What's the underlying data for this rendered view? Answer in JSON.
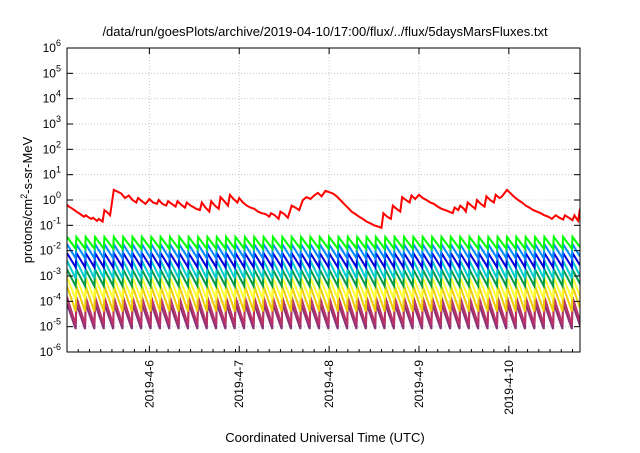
{
  "chart_data": {
    "type": "line",
    "title": "/data/run/goesPlots/archive/2019-04-10/17:00/flux/../flux/5daysMarsFluxes.txt",
    "xlabel": "Coordinated Universal Time (UTC)",
    "ylabel": "protons/cm²-s-sr-MeV",
    "y_scale": "log",
    "ylim": [
      1e-06,
      1000000.0
    ],
    "xlim": [
      "2019-04-05T02:00",
      "2019-04-10T19:00"
    ],
    "grid": true,
    "y_ticks": [
      {
        "value": 1e-06,
        "base": "10",
        "exp": "-6"
      },
      {
        "value": 1e-05,
        "base": "10",
        "exp": "-5"
      },
      {
        "value": 0.0001,
        "base": "10",
        "exp": "-4"
      },
      {
        "value": 0.001,
        "base": "10",
        "exp": "-3"
      },
      {
        "value": 0.01,
        "base": "10",
        "exp": "-2"
      },
      {
        "value": 0.1,
        "base": "10",
        "exp": "-1"
      },
      {
        "value": 1.0,
        "base": "10",
        "exp": "0"
      },
      {
        "value": 10.0,
        "base": "10",
        "exp": "1"
      },
      {
        "value": 100.0,
        "base": "10",
        "exp": "2"
      },
      {
        "value": 1000.0,
        "base": "10",
        "exp": "3"
      },
      {
        "value": 10000.0,
        "base": "10",
        "exp": "4"
      },
      {
        "value": 100000.0,
        "base": "10",
        "exp": "5"
      },
      {
        "value": 1000000.0,
        "base": "10",
        "exp": "6"
      }
    ],
    "x_ticks": [
      {
        "value": "2019-04-06T00:00",
        "label": "2019-4-6"
      },
      {
        "value": "2019-04-07T00:00",
        "label": "2019-4-7"
      },
      {
        "value": "2019-04-08T00:00",
        "label": "2019-4-8"
      },
      {
        "value": "2019-04-09T00:00",
        "label": "2019-4-9"
      },
      {
        "value": "2019-04-10T00:00",
        "label": "2019-4-10"
      }
    ],
    "series": [
      {
        "color": "#ff0000",
        "points": [
          [
            "2019-04-05T02:00",
            0.65
          ],
          [
            "2019-04-05T02:30",
            0.55
          ],
          [
            "2019-04-05T03:30",
            0.45
          ],
          [
            "2019-04-05T04:30",
            0.35
          ],
          [
            "2019-04-05T05:30",
            0.28
          ],
          [
            "2019-04-05T06:30",
            0.22
          ],
          [
            "2019-04-05T07:00",
            0.25
          ],
          [
            "2019-04-05T07:30",
            0.22
          ],
          [
            "2019-04-05T08:30",
            0.18
          ],
          [
            "2019-04-05T09:00",
            0.2
          ],
          [
            "2019-04-05T09:30",
            0.17
          ],
          [
            "2019-04-05T10:00",
            0.15
          ],
          [
            "2019-04-05T10:30",
            0.18
          ],
          [
            "2019-04-05T11:30",
            0.14
          ],
          [
            "2019-04-05T12:00",
            0.4
          ],
          [
            "2019-04-05T13:00",
            0.3
          ],
          [
            "2019-04-05T13:30",
            0.25
          ],
          [
            "2019-04-05T14:30",
            2.5
          ],
          [
            "2019-04-05T16:30",
            1.8
          ],
          [
            "2019-04-05T17:30",
            1.2
          ],
          [
            "2019-04-05T18:30",
            1.5
          ],
          [
            "2019-04-05T19:30",
            1.0
          ],
          [
            "2019-04-05T20:30",
            0.8
          ],
          [
            "2019-04-05T21:00",
            1.2
          ],
          [
            "2019-04-05T22:00",
            0.9
          ],
          [
            "2019-04-05T23:00",
            0.7
          ],
          [
            "2019-04-06T00:00",
            1.1
          ],
          [
            "2019-04-06T01:00",
            0.8
          ],
          [
            "2019-04-06T02:00",
            0.7
          ],
          [
            "2019-04-06T02:30",
            1.0
          ],
          [
            "2019-04-06T03:30",
            0.7
          ],
          [
            "2019-04-06T04:30",
            0.6
          ],
          [
            "2019-04-06T05:00",
            0.9
          ],
          [
            "2019-04-06T06:00",
            0.7
          ],
          [
            "2019-04-06T07:00",
            0.55
          ],
          [
            "2019-04-06T07:30",
            0.9
          ],
          [
            "2019-04-06T08:30",
            0.65
          ],
          [
            "2019-04-06T09:30",
            0.5
          ],
          [
            "2019-04-06T10:00",
            0.8
          ],
          [
            "2019-04-06T11:00",
            0.6
          ],
          [
            "2019-04-06T12:00",
            0.5
          ],
          [
            "2019-04-06T12:30",
            0.45
          ],
          [
            "2019-04-06T13:30",
            0.4
          ],
          [
            "2019-04-06T14:00",
            0.8
          ],
          [
            "2019-04-06T15:00",
            0.5
          ],
          [
            "2019-04-06T16:00",
            0.35
          ],
          [
            "2019-04-06T16:30",
            0.9
          ],
          [
            "2019-04-06T17:30",
            0.6
          ],
          [
            "2019-04-06T18:30",
            0.45
          ],
          [
            "2019-04-06T19:00",
            1.3
          ],
          [
            "2019-04-06T20:00",
            0.9
          ],
          [
            "2019-04-06T21:00",
            0.6
          ],
          [
            "2019-04-06T21:30",
            1.6
          ],
          [
            "2019-04-06T22:30",
            1.1
          ],
          [
            "2019-04-06T23:30",
            0.8
          ],
          [
            "2019-04-07T00:00",
            1.2
          ],
          [
            "2019-04-07T01:00",
            0.8
          ],
          [
            "2019-04-07T02:00",
            0.6
          ],
          [
            "2019-04-07T03:00",
            0.5
          ],
          [
            "2019-04-07T04:00",
            0.45
          ],
          [
            "2019-04-07T05:00",
            0.35
          ],
          [
            "2019-04-07T06:00",
            0.3
          ],
          [
            "2019-04-07T07:00",
            0.28
          ],
          [
            "2019-04-07T08:00",
            0.22
          ],
          [
            "2019-04-07T08:30",
            0.3
          ],
          [
            "2019-04-07T09:30",
            0.25
          ],
          [
            "2019-04-07T10:30",
            0.18
          ],
          [
            "2019-04-07T11:00",
            0.35
          ],
          [
            "2019-04-07T12:00",
            0.28
          ],
          [
            "2019-04-07T13:00",
            0.2
          ],
          [
            "2019-04-07T14:00",
            0.6
          ],
          [
            "2019-04-07T15:00",
            0.5
          ],
          [
            "2019-04-07T16:00",
            0.4
          ],
          [
            "2019-04-07T17:00",
            1.0
          ],
          [
            "2019-04-07T18:00",
            1.3
          ],
          [
            "2019-04-07T19:00",
            1.1
          ],
          [
            "2019-04-07T20:00",
            1.5
          ],
          [
            "2019-04-07T21:00",
            1.9
          ],
          [
            "2019-04-07T22:00",
            1.4
          ],
          [
            "2019-04-07T23:00",
            2.3
          ],
          [
            "2019-04-08T01:00",
            1.8
          ],
          [
            "2019-04-08T02:00",
            1.4
          ],
          [
            "2019-04-08T03:00",
            1.0
          ],
          [
            "2019-04-08T04:00",
            0.7
          ],
          [
            "2019-04-08T05:00",
            0.5
          ],
          [
            "2019-04-08T06:00",
            0.35
          ],
          [
            "2019-04-08T07:00",
            0.28
          ],
          [
            "2019-04-08T08:00",
            0.22
          ],
          [
            "2019-04-08T09:00",
            0.18
          ],
          [
            "2019-04-08T10:00",
            0.14
          ],
          [
            "2019-04-08T11:00",
            0.12
          ],
          [
            "2019-04-08T12:00",
            0.1
          ],
          [
            "2019-04-08T13:00",
            0.09
          ],
          [
            "2019-04-08T14:00",
            0.08
          ],
          [
            "2019-04-08T14:30",
            0.3
          ],
          [
            "2019-04-08T15:30",
            0.22
          ],
          [
            "2019-04-08T16:30",
            0.18
          ],
          [
            "2019-04-08T17:00",
            0.6
          ],
          [
            "2019-04-08T18:00",
            0.45
          ],
          [
            "2019-04-08T19:00",
            0.35
          ],
          [
            "2019-04-08T19:30",
            1.3
          ],
          [
            "2019-04-08T20:30",
            1.0
          ],
          [
            "2019-04-08T21:30",
            0.8
          ],
          [
            "2019-04-08T22:00",
            1.5
          ],
          [
            "2019-04-08T23:00",
            1.1
          ],
          [
            "2019-04-09T00:00",
            1.6
          ],
          [
            "2019-04-09T01:00",
            1.2
          ],
          [
            "2019-04-09T02:00",
            1.0
          ],
          [
            "2019-04-09T03:00",
            0.8
          ],
          [
            "2019-04-09T04:00",
            0.7
          ],
          [
            "2019-04-09T05:00",
            0.55
          ],
          [
            "2019-04-09T06:00",
            0.45
          ],
          [
            "2019-04-09T07:00",
            0.4
          ],
          [
            "2019-04-09T08:00",
            0.35
          ],
          [
            "2019-04-09T09:00",
            0.3
          ],
          [
            "2019-04-09T09:30",
            0.5
          ],
          [
            "2019-04-09T10:30",
            0.4
          ],
          [
            "2019-04-09T11:00",
            0.6
          ],
          [
            "2019-04-09T12:00",
            0.45
          ],
          [
            "2019-04-09T12:30",
            0.35
          ],
          [
            "2019-04-09T13:00",
            0.8
          ],
          [
            "2019-04-09T14:00",
            0.6
          ],
          [
            "2019-04-09T15:00",
            0.45
          ],
          [
            "2019-04-09T15:30",
            1.0
          ],
          [
            "2019-04-09T16:30",
            0.7
          ],
          [
            "2019-04-09T17:30",
            0.55
          ],
          [
            "2019-04-09T18:00",
            1.4
          ],
          [
            "2019-04-09T19:00",
            1.0
          ],
          [
            "2019-04-09T20:00",
            0.8
          ],
          [
            "2019-04-09T20:30",
            1.6
          ],
          [
            "2019-04-09T21:30",
            1.2
          ],
          [
            "2019-04-09T22:00",
            1.3
          ],
          [
            "2019-04-09T23:30",
            2.5
          ],
          [
            "2019-04-10T00:30",
            1.8
          ],
          [
            "2019-04-10T01:30",
            1.3
          ],
          [
            "2019-04-10T02:30",
            1.0
          ],
          [
            "2019-04-10T03:30",
            0.8
          ],
          [
            "2019-04-10T04:30",
            0.6
          ],
          [
            "2019-04-10T05:30",
            0.5
          ],
          [
            "2019-04-10T06:30",
            0.4
          ],
          [
            "2019-04-10T07:30",
            0.35
          ],
          [
            "2019-04-10T08:30",
            0.3
          ],
          [
            "2019-04-10T09:30",
            0.25
          ],
          [
            "2019-04-10T10:30",
            0.22
          ],
          [
            "2019-04-10T11:30",
            0.18
          ],
          [
            "2019-04-10T12:30",
            0.25
          ],
          [
            "2019-04-10T13:30",
            0.2
          ],
          [
            "2019-04-10T14:30",
            0.17
          ],
          [
            "2019-04-10T15:00",
            0.25
          ],
          [
            "2019-04-10T16:00",
            0.2
          ],
          [
            "2019-04-10T17:00",
            0.16
          ],
          [
            "2019-04-10T17:30",
            0.25
          ],
          [
            "2019-04-10T18:30",
            0.15
          ],
          [
            "2019-04-10T19:00",
            0.45
          ]
        ]
      },
      {
        "color": "#00ff00",
        "pattern": "sawtooth",
        "period_hours": 2.5,
        "peak": 0.035,
        "trough": 0.012
      },
      {
        "color": "#0088ff",
        "pattern": "sawtooth",
        "period_hours": 2.5,
        "peak": 0.018,
        "trough": 0.005
      },
      {
        "color": "#0000dd",
        "pattern": "sawtooth",
        "period_hours": 2.5,
        "peak": 0.008,
        "trough": 0.0022
      },
      {
        "color": "#00cccc",
        "pattern": "sawtooth",
        "period_hours": 2.5,
        "peak": 0.004,
        "trough": 0.0008
      },
      {
        "color": "#009944",
        "pattern": "sawtooth",
        "period_hours": 2.5,
        "peak": 0.0018,
        "trough": 0.0004
      },
      {
        "color": "#ffff33",
        "pattern": "sawtooth",
        "period_hours": 2.5,
        "peak": 0.0009,
        "trough": 0.00012
      },
      {
        "color": "#eecc00",
        "pattern": "sawtooth",
        "period_hours": 2.5,
        "peak": 0.0004,
        "trough": 4e-05
      },
      {
        "color": "#bb3366",
        "pattern": "sawtooth",
        "period_hours": 2.5,
        "peak": 0.00015,
        "trough": 1.2e-05
      },
      {
        "color": "#883377",
        "pattern": "sawtooth",
        "period_hours": 2.5,
        "peak": 8e-05,
        "trough": 8e-06
      }
    ]
  }
}
